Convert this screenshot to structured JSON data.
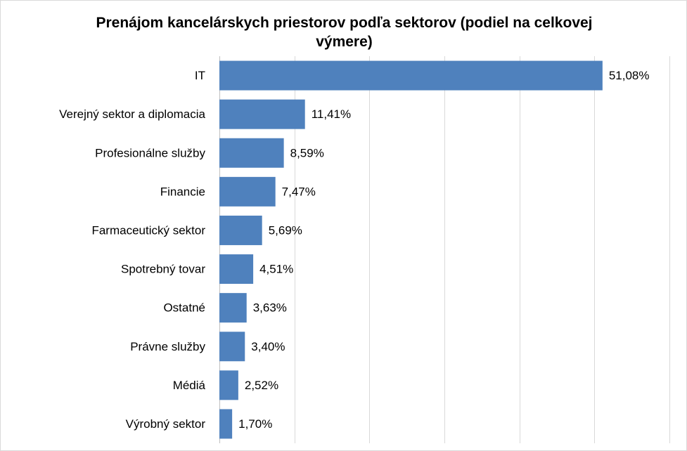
{
  "chart_data": {
    "type": "bar",
    "orientation": "horizontal",
    "title": "Prenájom kancelárskych priestorov podľa sektorov (podiel na celkovej výmere)",
    "categories": [
      "IT",
      "Verejný sektor a diplomacia",
      "Profesionálne služby",
      "Financie",
      "Farmaceutický sektor",
      "Spotrebný tovar",
      "Ostatné",
      "Právne služby",
      "Médiá",
      "Výrobný sektor"
    ],
    "values": [
      51.08,
      11.41,
      8.59,
      7.47,
      5.69,
      4.51,
      3.63,
      3.4,
      2.52,
      1.7
    ],
    "value_labels": [
      "51,08%",
      "11,41%",
      "8,59%",
      "7,47%",
      "5,69%",
      "4,51%",
      "3,63%",
      "3,40%",
      "2,52%",
      "1,70%"
    ],
    "xlim": [
      0,
      60
    ],
    "xlabel": "",
    "ylabel": "",
    "grid": true,
    "legend": "none",
    "bar_color": "#4f81bd"
  }
}
